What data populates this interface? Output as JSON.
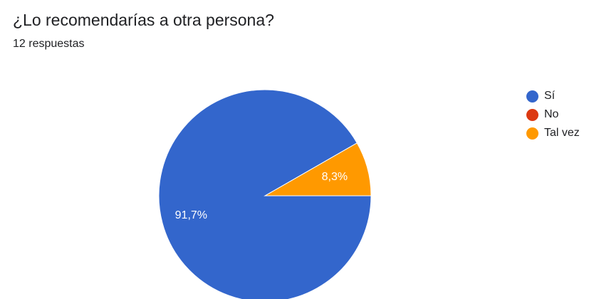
{
  "chart_data": {
    "type": "pie",
    "title": "¿Lo recomendarías a otra persona?",
    "subtitle": "12 respuestas",
    "categories": [
      "Sí",
      "No",
      "Tal vez"
    ],
    "values": [
      91.7,
      0,
      8.3
    ],
    "labels": [
      "91,7%",
      "",
      "8,3%"
    ],
    "colors": [
      "#3366cc",
      "#dc3912",
      "#ff9900"
    ],
    "legend_position": "right"
  }
}
